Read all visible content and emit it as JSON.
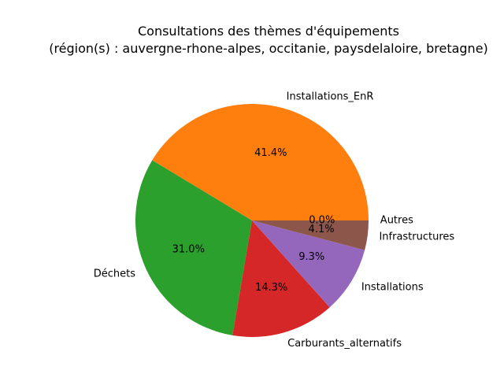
{
  "chart_data": {
    "type": "pie",
    "title_line1": "Consultations des thèmes d'équipements",
    "title_line2": "(région(s) : auvergne-rhone-alpes, occitanie, paysdelaloire, bretagne)",
    "categories": [
      "Installations_EnR",
      "Déchets",
      "Carburants_alternatifs",
      "Installations",
      "Infrastructures",
      "Autres"
    ],
    "values": [
      41.4,
      31.0,
      14.3,
      9.3,
      4.1,
      0.0
    ],
    "pct_labels": [
      "41.4%",
      "31.0%",
      "14.3%",
      "9.3%",
      "4.1%",
      "0.0%"
    ],
    "colors": [
      "#ff7f0e",
      "#2ca02c",
      "#d62728",
      "#9467bd",
      "#8c564b",
      "#e377c2"
    ],
    "start_angle_deg": 0,
    "direction": "counterclockwise"
  }
}
